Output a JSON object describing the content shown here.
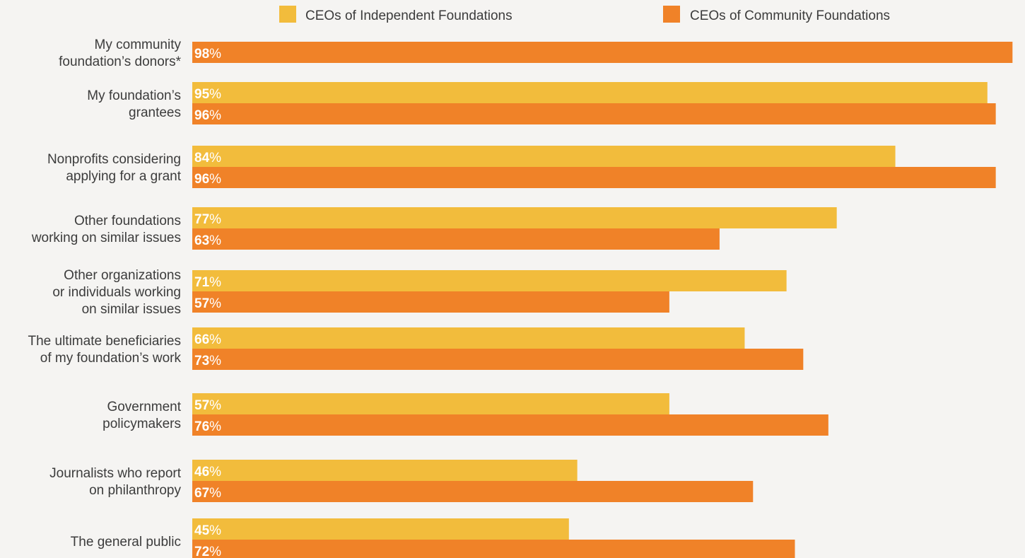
{
  "chart_data": {
    "type": "bar",
    "orientation": "horizontal",
    "title": "",
    "xlabel": "",
    "ylabel": "",
    "xlim": [
      0,
      100
    ],
    "grid": false,
    "legend_position": "top",
    "value_suffix": "%",
    "categories": [
      [
        "My community",
        "foundation’s donors*"
      ],
      [
        "My foundation’s",
        "grantees"
      ],
      [
        "Nonprofits considering",
        "applying for a grant"
      ],
      [
        "Other foundations",
        "working on similar issues"
      ],
      [
        "Other organizations",
        "or individuals working",
        "on similar issues"
      ],
      [
        "The ultimate beneficiaries",
        "of my foundation’s work"
      ],
      [
        "Government",
        "policymakers"
      ],
      [
        "Journalists who report",
        "on philanthropy"
      ],
      [
        "The general public"
      ]
    ],
    "series": [
      {
        "name": "CEOs of Independent Foundations",
        "color": "#f2bc3c",
        "values": [
          null,
          95,
          84,
          77,
          71,
          66,
          57,
          46,
          45
        ]
      },
      {
        "name": "CEOs of Community Foundations",
        "color": "#f08228",
        "values": [
          98,
          96,
          96,
          63,
          57,
          73,
          76,
          67,
          72
        ]
      }
    ]
  }
}
